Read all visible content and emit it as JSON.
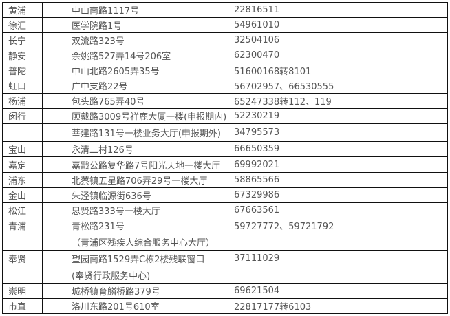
{
  "rows": [
    {
      "district": "黄浦",
      "address": "中山南路1117号",
      "phone": "22816511"
    },
    {
      "district": "徐汇",
      "address": "医学院路1号",
      "phone": "54961010"
    },
    {
      "district": "长宁",
      "address": "双流路323号",
      "phone": "32504106"
    },
    {
      "district": "静安",
      "address": "余姚路527弄14号206室",
      "phone": "62300470"
    },
    {
      "district": "普陀",
      "address": "中山北路2605弄35号",
      "phone": "51600168转8101"
    },
    {
      "district": "虹口",
      "address": "广中支路22号",
      "phone": "56702957、66530555"
    },
    {
      "district": "杨浦",
      "address": "包头路765弄40号",
      "phone": "65247338转112、119"
    },
    {
      "district": "闵行",
      "address": " 顾戴路3009号祥鹿大厦一楼(申报期内)",
      "phone": "52230219"
    },
    {
      "district": "",
      "address": " 莘建路131号一楼业务大厅(申报期外)",
      "phone": "34795573"
    },
    {
      "district": "宝山",
      "address": "永清二村126号",
      "phone": "66650359"
    },
    {
      "district": "嘉定",
      "address": " 嘉戬公路复华路7号阳光天地一楼大厅",
      "phone": "69992021"
    },
    {
      "district": "浦东",
      "address": "北蔡镇五星路706弄29号一楼大厅",
      "phone": "58865566"
    },
    {
      "district": "金山",
      "address": "朱泾镇临源街636号",
      "phone": "67329986"
    },
    {
      "district": "松江",
      "address": "思贤路333号一楼大厅",
      "phone": "67663561"
    },
    {
      "district": "青浦",
      "address": "青松路231号",
      "phone": "59727772、59721792"
    },
    {
      "district": "",
      "address": "（青浦区残疾人综合服务中心大厅）",
      "phone": ""
    },
    {
      "district": "奉贤",
      "address": "望园南路1529弄C栋2楼残联窗口",
      "phone": "37111029"
    },
    {
      "district": "",
      "address": "(奉贤行政服务中心)",
      "phone": ""
    },
    {
      "district": "崇明",
      "address": "城桥镇育麟桥路379号",
      "phone": "69621504"
    },
    {
      "district": "市直",
      "address": "洛川东路201号610室",
      "phone": "22817177转6103"
    }
  ]
}
